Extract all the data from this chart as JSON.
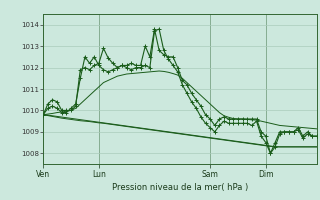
{
  "title": "",
  "xlabel": "Pression niveau de la mer( hPa )",
  "ylabel": "",
  "bg_color": "#cce8dd",
  "grid_color": "#aaccbb",
  "line_color": "#1a5c1a",
  "ylim": [
    1007.5,
    1014.5
  ],
  "yticks": [
    1008,
    1009,
    1010,
    1011,
    1012,
    1013,
    1014
  ],
  "day_labels": [
    "Ven",
    "Lun",
    "Sam",
    "Dim"
  ],
  "day_positions": [
    0,
    12,
    36,
    48
  ],
  "total_points": 60,
  "series1": [
    1009.8,
    1010.3,
    1010.5,
    1010.4,
    1010.0,
    1010.0,
    1010.0,
    1010.2,
    1011.9,
    1012.0,
    1011.9,
    1012.1,
    1012.2,
    1012.9,
    1012.45,
    1012.2,
    1012.0,
    1012.1,
    1012.1,
    1012.2,
    1012.1,
    1012.1,
    1013.0,
    1012.5,
    1013.8,
    1012.8,
    1012.6,
    1012.5,
    1012.5,
    1012.0,
    1011.4,
    1011.2,
    1010.8,
    1010.5,
    1010.2,
    1009.8,
    1009.6,
    1009.3,
    1009.6,
    1009.7,
    1009.6,
    1009.6,
    1009.6,
    1009.6,
    1009.6,
    1009.6,
    1009.6,
    1009.0,
    1008.8,
    1008.0,
    1008.5,
    1009.0,
    1009.0,
    1009.0,
    1009.0,
    1009.2,
    1008.8,
    1009.0,
    1008.8,
    1008.8
  ],
  "series2": [
    1009.8,
    1010.1,
    1010.2,
    1010.1,
    1009.9,
    1009.9,
    1010.1,
    1010.3,
    1011.5,
    1012.5,
    1012.2,
    1012.5,
    1012.1,
    1011.9,
    1011.8,
    1011.9,
    1012.0,
    1012.1,
    1012.0,
    1011.9,
    1012.0,
    1012.0,
    1012.1,
    1012.0,
    1013.7,
    1013.8,
    1012.8,
    1012.4,
    1012.1,
    1011.8,
    1011.2,
    1010.8,
    1010.4,
    1010.1,
    1009.7,
    1009.4,
    1009.2,
    1009.0,
    1009.3,
    1009.5,
    1009.4,
    1009.4,
    1009.4,
    1009.4,
    1009.4,
    1009.3,
    1009.5,
    1008.8,
    1008.5,
    1008.0,
    1008.3,
    1008.9,
    1009.0,
    1009.0,
    1009.0,
    1009.1,
    1008.7,
    1008.9,
    1008.8,
    1008.8
  ],
  "trend1": [
    1009.8,
    1009.83,
    1009.86,
    1009.9,
    1009.93,
    1009.96,
    1010.0,
    1010.1,
    1010.3,
    1010.5,
    1010.7,
    1010.9,
    1011.1,
    1011.3,
    1011.4,
    1011.5,
    1011.6,
    1011.65,
    1011.7,
    1011.72,
    1011.74,
    1011.76,
    1011.78,
    1011.8,
    1011.82,
    1011.84,
    1011.82,
    1011.78,
    1011.72,
    1011.65,
    1011.5,
    1011.3,
    1011.1,
    1010.9,
    1010.7,
    1010.5,
    1010.3,
    1010.1,
    1009.9,
    1009.75,
    1009.68,
    1009.62,
    1009.6,
    1009.6,
    1009.58,
    1009.56,
    1009.55,
    1009.5,
    1009.45,
    1009.4,
    1009.35,
    1009.3,
    1009.28,
    1009.26,
    1009.24,
    1009.22,
    1009.2,
    1009.18,
    1009.16,
    1009.14
  ],
  "trend2": [
    1009.8,
    1009.76,
    1009.72,
    1009.68,
    1009.64,
    1009.61,
    1009.58,
    1009.55,
    1009.52,
    1009.5,
    1009.48,
    1009.45,
    1009.42,
    1009.4,
    1009.37,
    1009.34,
    1009.31,
    1009.28,
    1009.25,
    1009.22,
    1009.19,
    1009.16,
    1009.13,
    1009.1,
    1009.07,
    1009.04,
    1009.01,
    1008.98,
    1008.95,
    1008.92,
    1008.89,
    1008.86,
    1008.83,
    1008.8,
    1008.77,
    1008.74,
    1008.71,
    1008.68,
    1008.65,
    1008.62,
    1008.59,
    1008.56,
    1008.53,
    1008.5,
    1008.47,
    1008.44,
    1008.41,
    1008.38,
    1008.35,
    1008.32,
    1008.3,
    1008.3,
    1008.3,
    1008.3,
    1008.3,
    1008.3,
    1008.3,
    1008.3,
    1008.3,
    1008.3
  ],
  "trend3": [
    1009.8,
    1009.78,
    1009.75,
    1009.72,
    1009.69,
    1009.66,
    1009.63,
    1009.6,
    1009.57,
    1009.54,
    1009.51,
    1009.48,
    1009.45,
    1009.42,
    1009.39,
    1009.36,
    1009.33,
    1009.3,
    1009.27,
    1009.24,
    1009.21,
    1009.18,
    1009.15,
    1009.12,
    1009.09,
    1009.06,
    1009.03,
    1009.0,
    1008.97,
    1008.94,
    1008.91,
    1008.88,
    1008.85,
    1008.82,
    1008.79,
    1008.76,
    1008.73,
    1008.7,
    1008.67,
    1008.64,
    1008.61,
    1008.58,
    1008.55,
    1008.52,
    1008.49,
    1008.46,
    1008.43,
    1008.4,
    1008.37,
    1008.34,
    1008.31,
    1008.3,
    1008.3,
    1008.3,
    1008.3,
    1008.3,
    1008.3,
    1008.3,
    1008.3,
    1008.3
  ]
}
